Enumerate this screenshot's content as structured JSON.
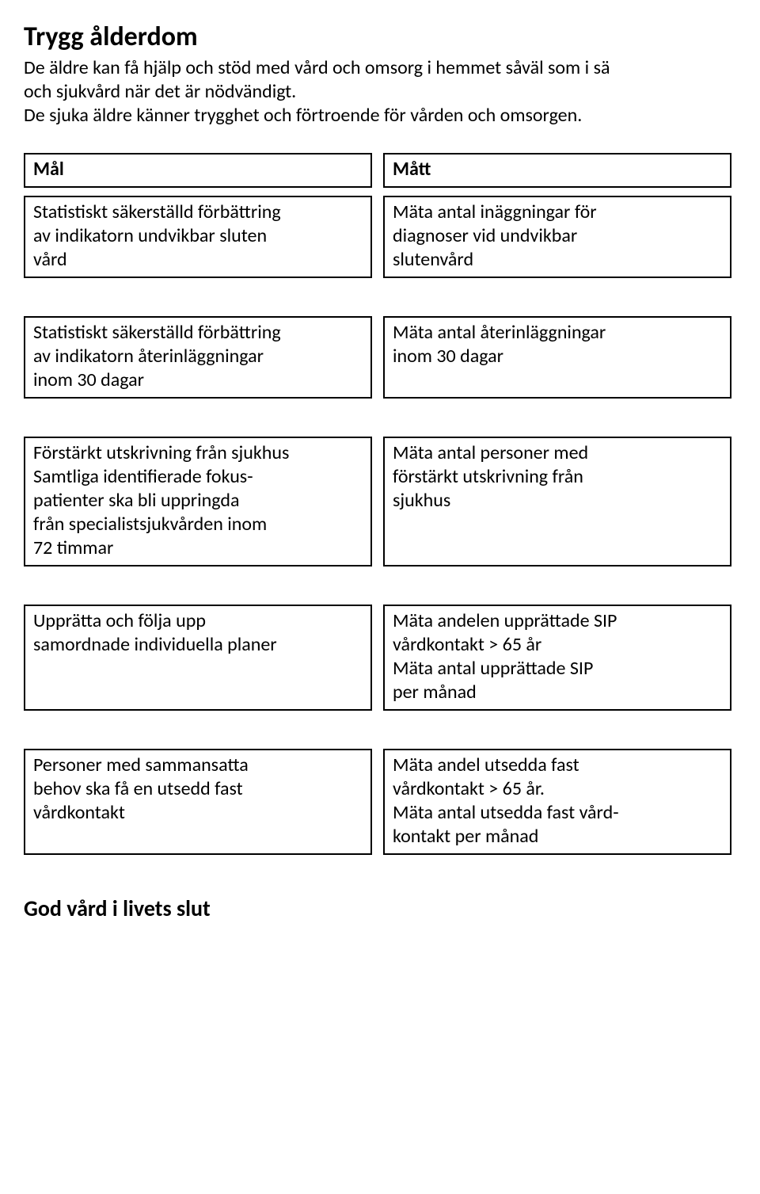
{
  "title": "Trygg ålderdom",
  "intro": "De äldre kan få hjälp och stöd med vård och omsorg i hemmet såväl som i sä\noch sjukvård när det är nödvändigt.\nDe sjuka äldre känner trygghet och förtroende för vården och omsorgen.",
  "header": {
    "left": "Mål",
    "right": "Mått"
  },
  "rows": [
    {
      "left": "Statistiskt säkerställd förbättring\nav indikatorn undvikbar sluten\nvård",
      "right": "Mäta antal inäggningar för\ndiagnoser vid undvikbar\nslutenvård"
    },
    {
      "left": "Statistiskt säkerställd förbättring\nav indikatorn återinläggningar\ninom 30 dagar",
      "right": "Mäta antal återinläggningar\ninom 30 dagar"
    },
    {
      "left": "Förstärkt utskrivning från sjukhus\nSamtliga identifierade fokus-\npatienter ska bli uppringda\nfrån specialistsjukvården inom\n72 timmar",
      "right": "Mäta antal personer med\nförstärkt utskrivning från\nsjukhus"
    },
    {
      "left": "Upprätta och följa upp\nsamordnade individuella planer",
      "right": "Mäta andelen upprättade SIP\nvårdkontakt > 65 år\nMäta antal upprättade SIP\nper månad"
    },
    {
      "left": "Personer med sammansatta\nbehov ska få en utsedd fast\nvårdkontakt",
      "right": "Mäta andel utsedda fast\nvårdkontakt > 65 år.\nMäta antal utsedda fast vård-\nkontakt per månad"
    }
  ],
  "bottom_title": "God vård i livets slut"
}
